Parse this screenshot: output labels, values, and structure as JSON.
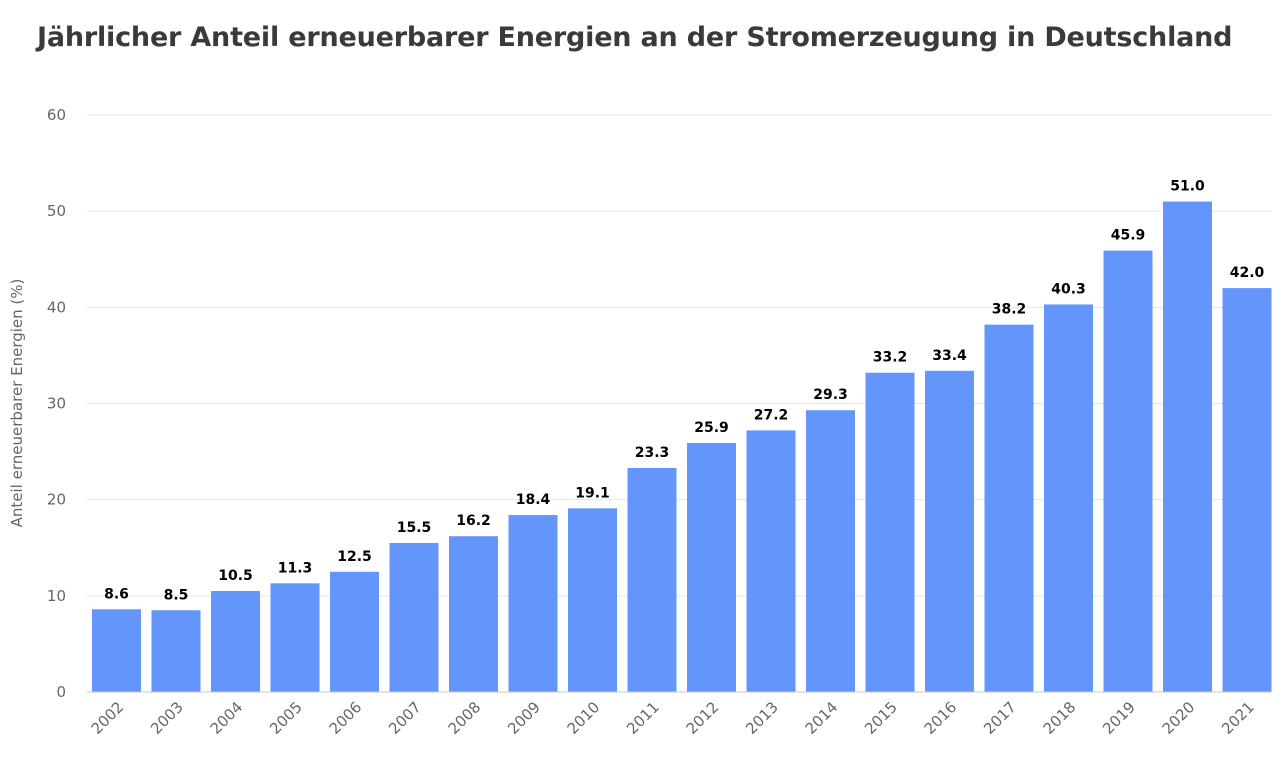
{
  "chart_data": {
    "type": "bar",
    "title": "Jährlicher Anteil erneuerbarer Energien an der Stromerzeugung in Deutschland",
    "xlabel": "",
    "ylabel": "Anteil erneuerbarer Energien (%)",
    "ylim": [
      0,
      60
    ],
    "yticks": [
      "0",
      "10",
      "20",
      "30",
      "40",
      "50",
      "60"
    ],
    "grid": true,
    "bar_color": "#6495fb",
    "categories": [
      "2002",
      "2003",
      "2004",
      "2005",
      "2006",
      "2007",
      "2008",
      "2009",
      "2010",
      "2011",
      "2012",
      "2013",
      "2014",
      "2015",
      "2016",
      "2017",
      "2018",
      "2019",
      "2020",
      "2021"
    ],
    "values": [
      8.6,
      8.5,
      10.5,
      11.3,
      12.5,
      15.5,
      16.2,
      18.4,
      19.1,
      23.3,
      25.9,
      27.2,
      29.3,
      33.2,
      33.4,
      38.2,
      40.3,
      45.9,
      51.0,
      42.0
    ],
    "labels": [
      "8.6",
      "8.5",
      "10.5",
      "11.3",
      "12.5",
      "15.5",
      "16.2",
      "18.4",
      "19.1",
      "23.3",
      "25.9",
      "27.2",
      "29.3",
      "33.2",
      "33.4",
      "38.2",
      "40.3",
      "45.9",
      "51.0",
      "42.0"
    ]
  }
}
